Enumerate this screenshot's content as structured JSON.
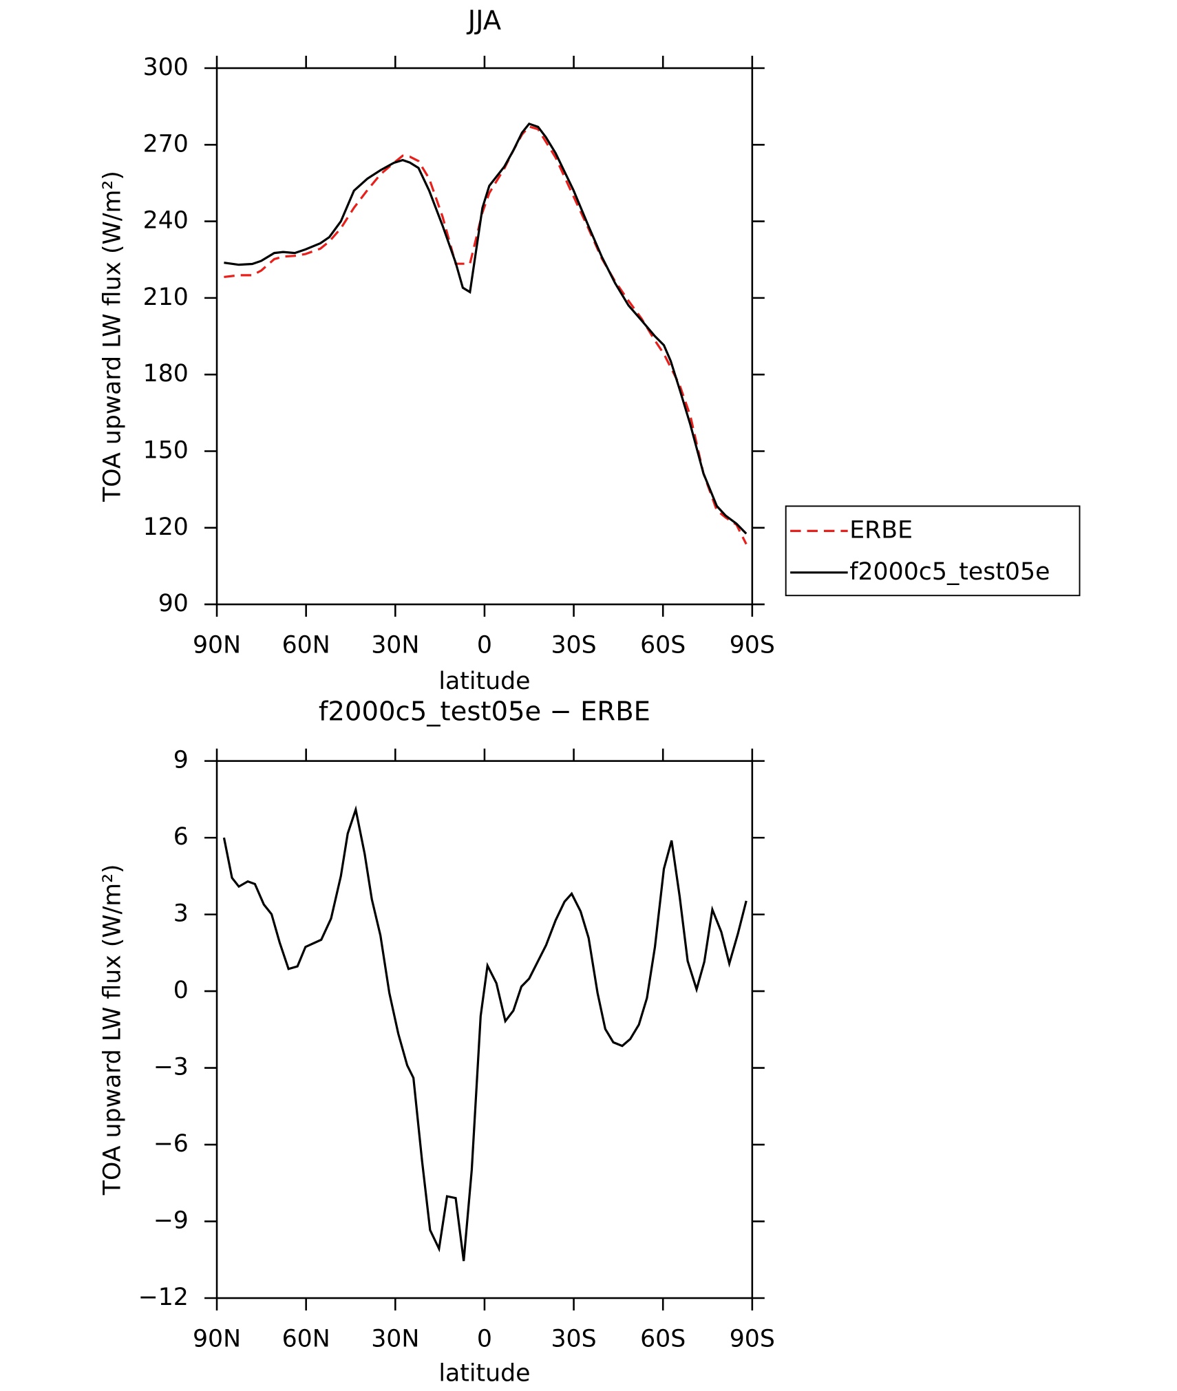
{
  "chart_data": [
    {
      "type": "line",
      "title": "JJA",
      "xlabel": "latitude",
      "ylabel": "TOA upward LW flux (W/m²)",
      "xlim": [
        90,
        -90
      ],
      "xticks": [
        {
          "value": 90,
          "label": "90N"
        },
        {
          "value": 60,
          "label": "60N"
        },
        {
          "value": 30,
          "label": "30N"
        },
        0,
        {
          "value": -30,
          "label": "30S"
        },
        {
          "value": -60,
          "label": "60S"
        },
        {
          "value": -90,
          "label": "90S"
        }
      ],
      "ylim": [
        90,
        300
      ],
      "yticks": [
        90,
        120,
        150,
        180,
        210,
        240,
        270,
        300
      ],
      "legend": "right",
      "x": [
        87.6,
        82.6,
        78.1,
        75.1,
        70.7,
        67.7,
        63.8,
        60.2,
        55.2,
        52.2,
        48.3,
        43.9,
        39.4,
        35,
        30.5,
        27.5,
        25.1,
        22.2,
        18.6,
        14.1,
        9.7,
        7.3,
        4.9,
        0.7,
        -1.6,
        -6.7,
        -9.7,
        -12.6,
        -15,
        -18,
        -20.6,
        -23.9,
        -29.9,
        -34.9,
        -39.4,
        -43.9,
        -48.4,
        -52.8,
        -57.3,
        -60.3,
        -62.6,
        -65.6,
        -69.2,
        -73.6,
        -78.1,
        -81.1,
        -84.7,
        -88
      ],
      "series": [
        {
          "name": "ERBE",
          "color": "#e8201c",
          "line_style": "dashed",
          "values": [
            218.2,
            218.9,
            218.9,
            220.7,
            225.2,
            226.2,
            226.5,
            227.2,
            229.3,
            232.1,
            237.3,
            245.3,
            252.2,
            258.4,
            262.9,
            265.7,
            265.3,
            263.6,
            256.7,
            241.8,
            223.4,
            223.4,
            223.4,
            243.5,
            251.1,
            260.8,
            267.8,
            274,
            277.1,
            276.1,
            271.2,
            265,
            249.8,
            237.3,
            225.5,
            216.5,
            208.9,
            201.9,
            193.3,
            188.1,
            182.8,
            175.9,
            163.8,
            141.3,
            126.8,
            124,
            121.2,
            113.6
          ]
        },
        {
          "name": "f2000c5_test05e",
          "color": "#000000",
          "line_style": "solid",
          "values": [
            223.8,
            223,
            223.3,
            224.5,
            227.6,
            228,
            227.6,
            229,
            231.4,
            233.8,
            240,
            252,
            256.7,
            260,
            262.9,
            264,
            263,
            260.9,
            252,
            238.3,
            223.8,
            214,
            212.3,
            245.3,
            253.9,
            261.5,
            267.8,
            274.7,
            278.2,
            277,
            273,
            266.7,
            252.2,
            238.3,
            226.2,
            215.8,
            207.1,
            201.2,
            195,
            191.5,
            185.3,
            174.2,
            160.4,
            141.3,
            128.5,
            124.7,
            121.6,
            117.7
          ]
        }
      ]
    },
    {
      "type": "line",
      "title": "f2000c5_test05e − ERBE",
      "xlabel": "latitude",
      "ylabel": "TOA upward LW flux (W/m²)",
      "xlim": [
        90,
        -90
      ],
      "xticks": [
        {
          "value": 90,
          "label": "90N"
        },
        {
          "value": 60,
          "label": "60N"
        },
        {
          "value": 30,
          "label": "30N"
        },
        0,
        {
          "value": -30,
          "label": "30S"
        },
        {
          "value": -60,
          "label": "60S"
        },
        {
          "value": -90,
          "label": "90S"
        }
      ],
      "ylim": [
        -12,
        9
      ],
      "yticks": [
        {
          "value": -12,
          "label": "−12"
        },
        {
          "value": -9,
          "label": "−9"
        },
        {
          "value": -6,
          "label": "−6"
        },
        {
          "value": -3,
          "label": "−3"
        },
        0,
        3,
        6,
        9
      ],
      "x": [
        87.6,
        84.9,
        82.6,
        79.6,
        77.2,
        74.2,
        71.6,
        68.9,
        65.9,
        62.9,
        60.2,
        54.9,
        51.6,
        48.3,
        46,
        43.3,
        40.3,
        37.9,
        35,
        32,
        29,
        26,
        23.9,
        21,
        18.3,
        15.3,
        12.6,
        9.7,
        7,
        4.3,
        1.3,
        -1,
        -4,
        -7,
        -9.7,
        -12.4,
        -15,
        -20.7,
        -23.9,
        -26.9,
        -29.3,
        -32.3,
        -35,
        -38,
        -40.6,
        -43.3,
        -46.3,
        -49,
        -51.9,
        -54.6,
        -57.3,
        -60.3,
        -62.9,
        -65.6,
        -68.3,
        -71.3,
        -73.9,
        -76.6,
        -79.6,
        -82.3,
        -85.2,
        -88
      ],
      "series": [
        {
          "color": "#000000",
          "line_style": "solid",
          "values": [
            6.0,
            4.43,
            4.09,
            4.29,
            4.19,
            3.39,
            3.01,
            1.91,
            0.87,
            0.97,
            1.73,
            2.01,
            2.84,
            4.5,
            6.16,
            7.1,
            5.37,
            3.6,
            2.18,
            -0.07,
            -1.66,
            -2.9,
            -3.39,
            -6.64,
            -9.34,
            -10.07,
            -8.02,
            -8.09,
            -10.55,
            -6.99,
            -0.97,
            1.0,
            0.31,
            -1.17,
            -0.76,
            0.18,
            0.49,
            1.8,
            2.77,
            3.5,
            3.81,
            3.12,
            2.08,
            -0.07,
            -1.48,
            -2.0,
            -2.14,
            -1.87,
            -1.31,
            -0.27,
            1.73,
            4.78,
            5.89,
            3.71,
            1.18,
            0.07,
            1.15,
            3.19,
            2.32,
            1.08,
            2.25,
            3.53
          ]
        }
      ]
    }
  ]
}
